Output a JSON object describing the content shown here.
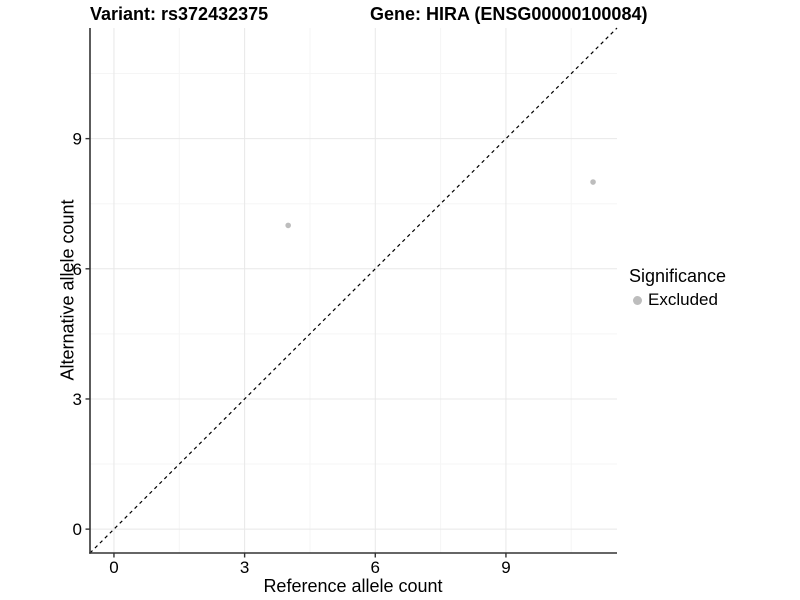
{
  "title": {
    "variant": "Variant: rs372432375",
    "gene": "Gene: HIRA (ENSG00000100084)"
  },
  "legend": {
    "title": "Significance",
    "items": [
      {
        "label": "Excluded",
        "color": "#bdbdbd",
        "shape": "dot"
      }
    ],
    "position": "right"
  },
  "colors": {
    "background": "#ffffff",
    "grid_major": "#e8e8e8",
    "grid_minor": "#f5f5f5",
    "axis_line": "#333333",
    "tick_label": "#000000",
    "point": "#bdbdbd",
    "reference_line": "#000000"
  },
  "chart_data": {
    "type": "scatter",
    "title": "Variant: rs372432375   Gene: HIRA (ENSG00000100084)",
    "xlabel": "Reference allele count",
    "ylabel": "Alternative allele count",
    "xlim": [
      -0.55,
      11.55
    ],
    "ylim": [
      -0.55,
      11.55
    ],
    "x_ticks": [
      0,
      3,
      6,
      9
    ],
    "y_ticks": [
      0,
      3,
      6,
      9
    ],
    "x_minor_ticks": [
      1.5,
      4.5,
      7.5,
      10.5
    ],
    "y_minor_ticks": [
      1.5,
      4.5,
      7.5,
      10.5
    ],
    "grid": true,
    "legend_position": "right",
    "series": [
      {
        "name": "Excluded",
        "color": "#bdbdbd",
        "points": [
          {
            "x": 4,
            "y": 7
          },
          {
            "x": 11,
            "y": 8
          }
        ]
      }
    ],
    "reference_line": {
      "kind": "identity",
      "style": "dashed",
      "color": "#000000"
    }
  }
}
